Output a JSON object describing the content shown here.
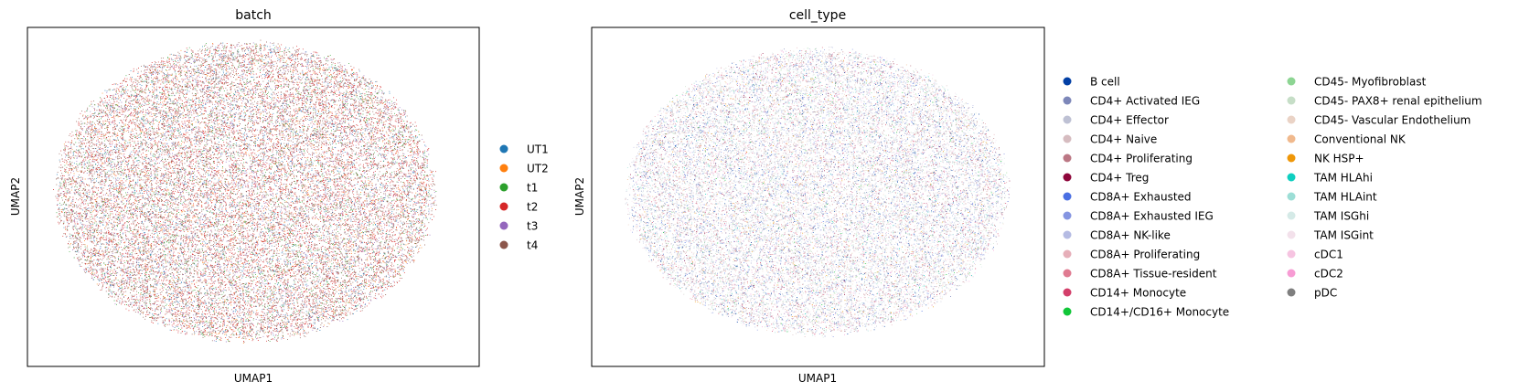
{
  "chart_data": [
    {
      "type": "scatter",
      "title": "batch",
      "xlabel": "UMAP1",
      "ylabel": "UMAP2",
      "legend_position": "right",
      "grid": false,
      "ticks": false,
      "series": [
        {
          "name": "UT1",
          "color": "#1f77b4"
        },
        {
          "name": "UT2",
          "color": "#ff7f0e"
        },
        {
          "name": "t1",
          "color": "#2ca02c"
        },
        {
          "name": "t2",
          "color": "#d62728"
        },
        {
          "name": "t3",
          "color": "#9467bd"
        },
        {
          "name": "t4",
          "color": "#8c564b"
        }
      ]
    },
    {
      "type": "scatter",
      "title": "cell_type",
      "xlabel": "UMAP1",
      "ylabel": "UMAP2",
      "legend_position": "right",
      "legend_columns": 2,
      "grid": false,
      "ticks": false,
      "series": [
        {
          "name": "B cell",
          "color": "#023fa5"
        },
        {
          "name": "CD4+ Activated IEG",
          "color": "#7d87b9"
        },
        {
          "name": "CD4+ Effector",
          "color": "#bec1d4"
        },
        {
          "name": "CD4+ Naive",
          "color": "#d6bcc0"
        },
        {
          "name": "CD4+ Proliferating",
          "color": "#bb7784"
        },
        {
          "name": "CD4+ Treg",
          "color": "#8e063b"
        },
        {
          "name": "CD8A+ Exhausted",
          "color": "#4a6fe3"
        },
        {
          "name": "CD8A+ Exhausted IEG",
          "color": "#8595e1"
        },
        {
          "name": "CD8A+ NK-like",
          "color": "#b5bbe3"
        },
        {
          "name": "CD8A+ Proliferating",
          "color": "#e6afb9"
        },
        {
          "name": "CD8A+ Tissue-resident",
          "color": "#e07b91"
        },
        {
          "name": "CD14+ Monocyte",
          "color": "#d33f6a"
        },
        {
          "name": "CD14+/CD16+ Monocyte",
          "color": "#11c638"
        },
        {
          "name": "CD45- Myofibroblast",
          "color": "#8dd593"
        },
        {
          "name": "CD45- PAX8+ renal epithelium",
          "color": "#c6dec7"
        },
        {
          "name": "CD45- Vascular Endothelium",
          "color": "#ead3c6"
        },
        {
          "name": "Conventional NK",
          "color": "#f0b98d"
        },
        {
          "name": "NK HSP+",
          "color": "#ef9708"
        },
        {
          "name": "TAM HLAhi",
          "color": "#0fcfc0"
        },
        {
          "name": "TAM HLAint",
          "color": "#9cded6"
        },
        {
          "name": "TAM ISGhi",
          "color": "#d5eae7"
        },
        {
          "name": "TAM ISGint",
          "color": "#f3e1eb"
        },
        {
          "name": "cDC1",
          "color": "#f6c4e1"
        },
        {
          "name": "cDC2",
          "color": "#f79cd4"
        },
        {
          "name": "pDC",
          "color": "#7f7f7f"
        }
      ]
    }
  ]
}
